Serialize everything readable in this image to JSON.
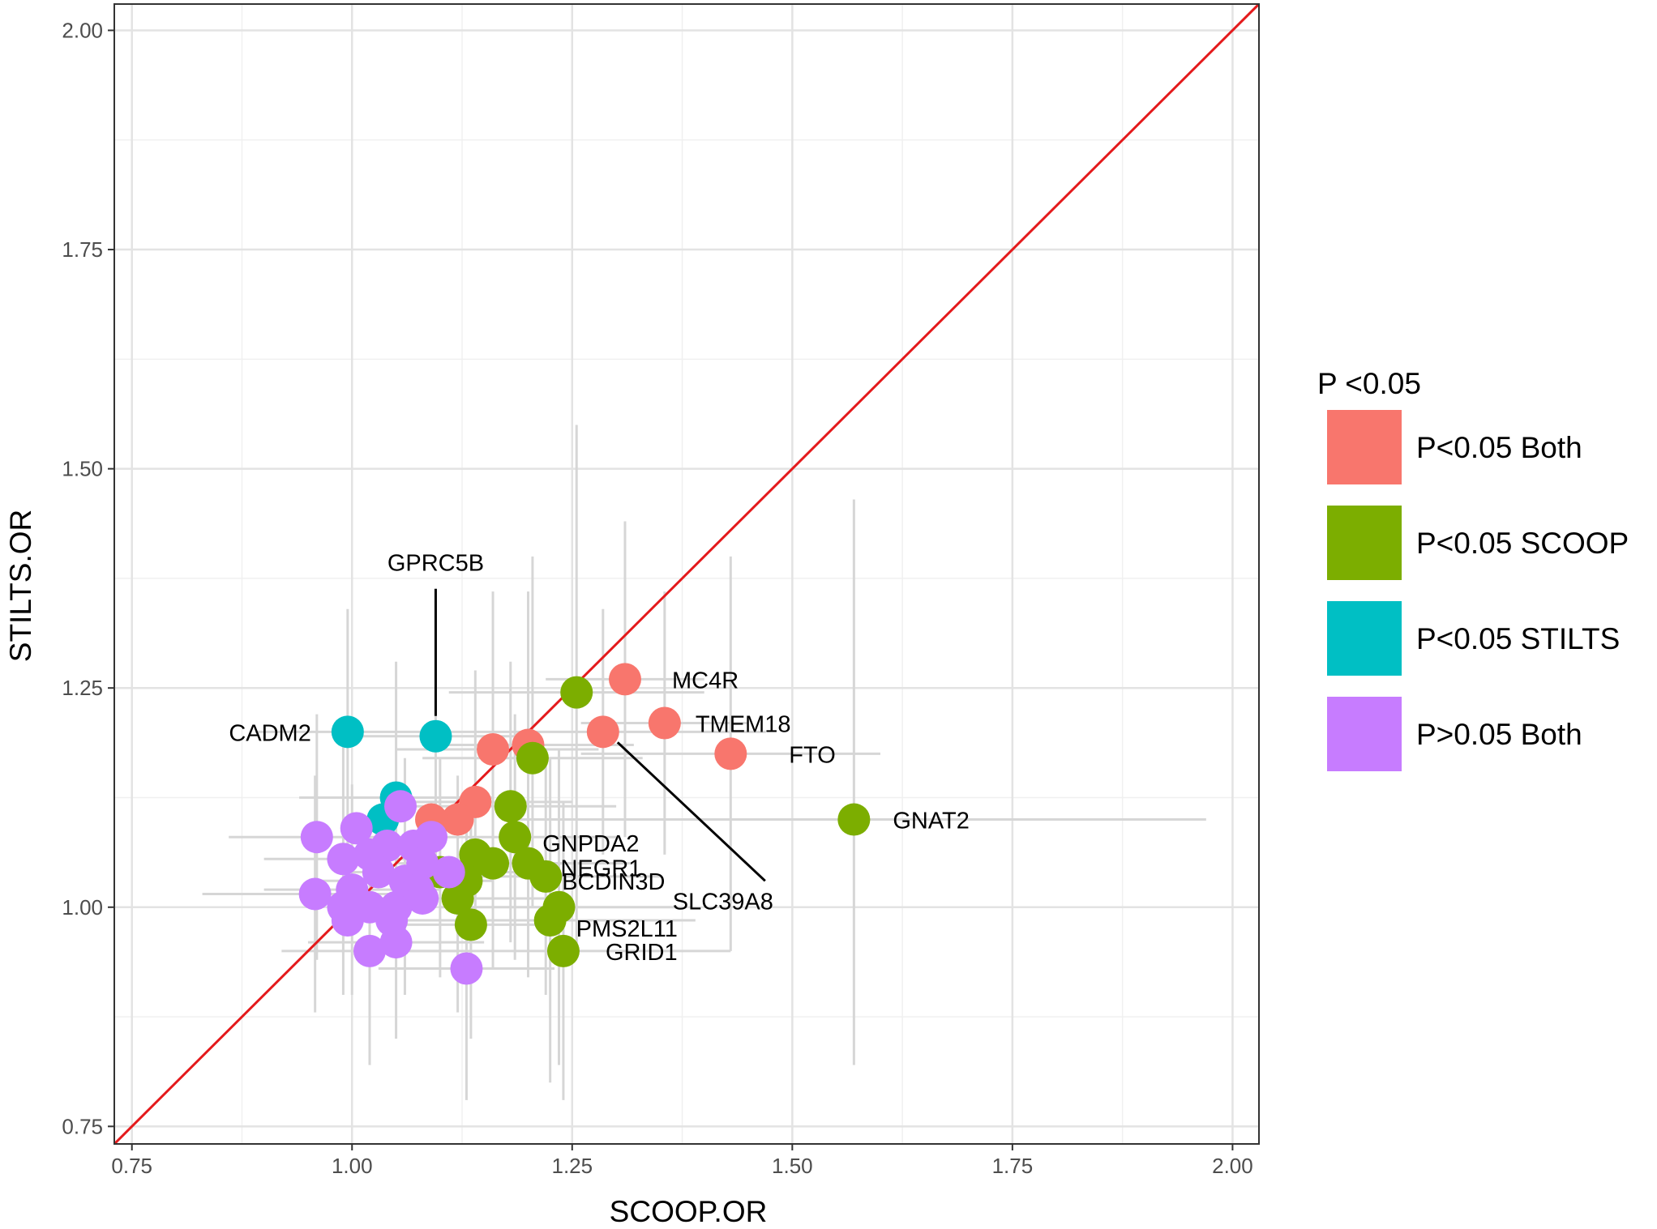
{
  "chart_data": {
    "type": "scatter",
    "xlabel": "SCOOP.OR",
    "ylabel": "STILTS.OR",
    "xlim": [
      0.73,
      2.03
    ],
    "ylim": [
      0.73,
      2.03
    ],
    "x_ticks": [
      0.75,
      1.0,
      1.25,
      1.5,
      1.75,
      2.0
    ],
    "y_ticks": [
      0.75,
      1.0,
      1.25,
      1.5,
      1.75,
      2.0
    ],
    "x_tick_labels": [
      "0.75",
      "1.00",
      "1.25",
      "1.50",
      "1.75",
      "2.00"
    ],
    "y_tick_labels": [
      "0.75",
      "1.00",
      "1.25",
      "1.50",
      "1.75",
      "2.00"
    ],
    "grid": true,
    "reference_line": {
      "type": "identity",
      "color": "#e41a1c"
    },
    "legend": {
      "title": "P <0.05",
      "placement": "right",
      "entries": [
        {
          "label": "P<0.05 Both",
          "color": "#f8766d"
        },
        {
          "label": "P<0.05 SCOOP",
          "color": "#7cae00"
        },
        {
          "label": "P<0.05 STILTS",
          "color": "#00bfc4"
        },
        {
          "label": "P>0.05 Both",
          "color": "#c77cff"
        }
      ]
    },
    "series": [
      {
        "name": "P<0.05 Both",
        "color": "#f8766d",
        "points": [
          {
            "x": 1.31,
            "y": 1.26,
            "label": "MC4R"
          },
          {
            "x": 1.355,
            "y": 1.21,
            "label": "TMEM18"
          },
          {
            "x": 1.43,
            "y": 1.175,
            "label": "FTO"
          },
          {
            "x": 1.285,
            "y": 1.2,
            "label": "SLC39A8"
          },
          {
            "x": 1.2,
            "y": 1.185
          },
          {
            "x": 1.16,
            "y": 1.18
          },
          {
            "x": 1.14,
            "y": 1.12
          },
          {
            "x": 1.12,
            "y": 1.1
          },
          {
            "x": 1.09,
            "y": 1.1
          }
        ]
      },
      {
        "name": "P<0.05 SCOOP",
        "color": "#7cae00",
        "points": [
          {
            "x": 1.57,
            "y": 1.1,
            "label": "GNAT2"
          },
          {
            "x": 1.255,
            "y": 1.245
          },
          {
            "x": 1.205,
            "y": 1.17
          },
          {
            "x": 1.18,
            "y": 1.115
          },
          {
            "x": 1.185,
            "y": 1.08,
            "label": "GNPDA2"
          },
          {
            "x": 1.2,
            "y": 1.05,
            "label": "NEGR1"
          },
          {
            "x": 1.22,
            "y": 1.035,
            "label": "BCDIN3D"
          },
          {
            "x": 1.235,
            "y": 1.0
          },
          {
            "x": 1.225,
            "y": 0.985,
            "label": "PMS2L11"
          },
          {
            "x": 1.24,
            "y": 0.95,
            "label": "GRID1"
          },
          {
            "x": 1.16,
            "y": 1.05
          },
          {
            "x": 1.14,
            "y": 1.06
          },
          {
            "x": 1.13,
            "y": 1.03
          },
          {
            "x": 1.12,
            "y": 1.01
          },
          {
            "x": 1.135,
            "y": 0.98
          },
          {
            "x": 1.1,
            "y": 1.04
          }
        ]
      },
      {
        "name": "P<0.05 STILTS",
        "color": "#00bfc4",
        "points": [
          {
            "x": 0.995,
            "y": 1.2,
            "label": "CADM2"
          },
          {
            "x": 1.095,
            "y": 1.195,
            "label": "GPRC5B"
          },
          {
            "x": 1.05,
            "y": 1.125
          },
          {
            "x": 1.035,
            "y": 1.1
          }
        ]
      },
      {
        "name": "P>0.05 Both",
        "color": "#c77cff",
        "points": [
          {
            "x": 0.96,
            "y": 1.08
          },
          {
            "x": 0.958,
            "y": 1.015
          },
          {
            "x": 0.99,
            "y": 1.055
          },
          {
            "x": 1.005,
            "y": 1.09
          },
          {
            "x": 1.055,
            "y": 1.115
          },
          {
            "x": 1.02,
            "y": 1.06
          },
          {
            "x": 1.04,
            "y": 1.07
          },
          {
            "x": 1.07,
            "y": 1.07
          },
          {
            "x": 1.09,
            "y": 1.08
          },
          {
            "x": 1.08,
            "y": 1.05
          },
          {
            "x": 1.03,
            "y": 1.04
          },
          {
            "x": 1.06,
            "y": 1.03
          },
          {
            "x": 1.0,
            "y": 1.02
          },
          {
            "x": 0.99,
            "y": 1.0
          },
          {
            "x": 1.02,
            "y": 1.0
          },
          {
            "x": 1.05,
            "y": 1.0
          },
          {
            "x": 1.075,
            "y": 1.02
          },
          {
            "x": 1.08,
            "y": 1.01
          },
          {
            "x": 1.045,
            "y": 0.985
          },
          {
            "x": 1.05,
            "y": 0.96
          },
          {
            "x": 1.02,
            "y": 0.95
          },
          {
            "x": 0.995,
            "y": 0.985
          },
          {
            "x": 1.13,
            "y": 0.93
          },
          {
            "x": 1.11,
            "y": 1.04
          }
        ]
      }
    ],
    "error_bars": [
      {
        "x": 1.57,
        "y": 1.1,
        "xlo": 1.17,
        "xhi": 1.97,
        "ylo": 0.82,
        "yhi": 1.465
      },
      {
        "x": 1.255,
        "y": 1.245,
        "xlo": 1.11,
        "xhi": 1.4,
        "ylo": 0.95,
        "yhi": 1.55
      },
      {
        "x": 1.43,
        "y": 1.175,
        "xlo": 1.26,
        "xhi": 1.6,
        "ylo": 0.95,
        "yhi": 1.4
      },
      {
        "x": 1.31,
        "y": 1.26,
        "xlo": 1.22,
        "xhi": 1.4,
        "ylo": 1.08,
        "yhi": 1.44
      },
      {
        "x": 1.355,
        "y": 1.21,
        "xlo": 1.26,
        "xhi": 1.45,
        "ylo": 1.06,
        "yhi": 1.36
      },
      {
        "x": 1.285,
        "y": 1.2,
        "xlo": 1.1,
        "xhi": 1.47,
        "ylo": 1.06,
        "yhi": 1.34
      },
      {
        "x": 1.24,
        "y": 0.95,
        "xlo": 1.05,
        "xhi": 1.43,
        "ylo": 0.78,
        "yhi": 1.12
      },
      {
        "x": 1.225,
        "y": 0.985,
        "xlo": 1.06,
        "xhi": 1.39,
        "ylo": 0.8,
        "yhi": 1.17
      },
      {
        "x": 1.235,
        "y": 1.0,
        "xlo": 1.1,
        "xhi": 1.37,
        "ylo": 0.82,
        "yhi": 1.18
      },
      {
        "x": 1.205,
        "y": 1.17,
        "xlo": 1.08,
        "xhi": 1.33,
        "ylo": 1.0,
        "yhi": 1.4
      },
      {
        "x": 1.2,
        "y": 1.185,
        "xlo": 1.08,
        "xhi": 1.32,
        "ylo": 1.02,
        "yhi": 1.36
      },
      {
        "x": 1.16,
        "y": 1.18,
        "xlo": 1.05,
        "xhi": 1.28,
        "ylo": 1.01,
        "yhi": 1.36
      },
      {
        "x": 1.22,
        "y": 1.035,
        "xlo": 1.09,
        "xhi": 1.35,
        "ylo": 0.9,
        "yhi": 1.18
      },
      {
        "x": 1.2,
        "y": 1.05,
        "xlo": 1.08,
        "xhi": 1.32,
        "ylo": 0.92,
        "yhi": 1.2
      },
      {
        "x": 1.185,
        "y": 1.08,
        "xlo": 1.07,
        "xhi": 1.3,
        "ylo": 0.94,
        "yhi": 1.22
      },
      {
        "x": 1.18,
        "y": 1.115,
        "xlo": 1.06,
        "xhi": 1.3,
        "ylo": 0.96,
        "yhi": 1.28
      },
      {
        "x": 1.14,
        "y": 1.12,
        "xlo": 1.04,
        "xhi": 1.25,
        "ylo": 0.98,
        "yhi": 1.27
      },
      {
        "x": 1.135,
        "y": 0.98,
        "xlo": 1.03,
        "xhi": 1.24,
        "ylo": 0.85,
        "yhi": 1.12
      },
      {
        "x": 1.13,
        "y": 0.93,
        "xlo": 1.03,
        "xhi": 1.23,
        "ylo": 0.78,
        "yhi": 1.09
      },
      {
        "x": 1.095,
        "y": 1.195,
        "xlo": 1.0,
        "xhi": 1.19,
        "ylo": 1.05,
        "yhi": 1.35
      },
      {
        "x": 0.995,
        "y": 1.2,
        "xlo": 0.89,
        "xhi": 1.1,
        "ylo": 1.05,
        "yhi": 1.34
      },
      {
        "x": 1.05,
        "y": 1.125,
        "xlo": 0.94,
        "xhi": 1.16,
        "ylo": 0.97,
        "yhi": 1.28
      },
      {
        "x": 0.96,
        "y": 1.08,
        "xlo": 0.86,
        "xhi": 1.06,
        "ylo": 0.94,
        "yhi": 1.22
      },
      {
        "x": 0.958,
        "y": 1.015,
        "xlo": 0.83,
        "xhi": 1.08,
        "ylo": 0.88,
        "yhi": 1.15
      },
      {
        "x": 0.99,
        "y": 1.055,
        "xlo": 0.9,
        "xhi": 1.09,
        "ylo": 0.9,
        "yhi": 1.21
      },
      {
        "x": 1.02,
        "y": 0.95,
        "xlo": 0.92,
        "xhi": 1.12,
        "ylo": 0.82,
        "yhi": 1.08
      },
      {
        "x": 1.05,
        "y": 0.96,
        "xlo": 0.95,
        "xhi": 1.15,
        "ylo": 0.85,
        "yhi": 1.08
      },
      {
        "x": 1.0,
        "y": 1.02,
        "xlo": 0.9,
        "xhi": 1.1,
        "ylo": 0.9,
        "yhi": 1.14
      },
      {
        "x": 1.06,
        "y": 1.03,
        "xlo": 0.96,
        "xhi": 1.16,
        "ylo": 0.9,
        "yhi": 1.17
      },
      {
        "x": 1.1,
        "y": 1.04,
        "xlo": 0.99,
        "xhi": 1.21,
        "ylo": 0.92,
        "yhi": 1.17
      },
      {
        "x": 1.16,
        "y": 1.05,
        "xlo": 1.05,
        "xhi": 1.27,
        "ylo": 0.93,
        "yhi": 1.18
      },
      {
        "x": 1.12,
        "y": 1.01,
        "xlo": 1.01,
        "xhi": 1.23,
        "ylo": 0.88,
        "yhi": 1.15
      }
    ]
  }
}
